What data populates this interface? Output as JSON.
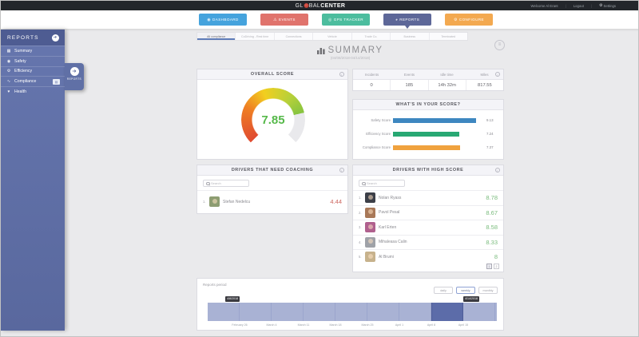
{
  "topbar": {
    "logo_prefix": "GL",
    "logo_mid": "BAL",
    "logo_suffix": "CENTER",
    "welcome": "Welcome Al Erant",
    "logout": "Logout",
    "settings": "Settings"
  },
  "nav": {
    "items": [
      {
        "label": "DASHBOARD",
        "icon": "◉",
        "color": "#45a3dd"
      },
      {
        "label": "EVENTS",
        "icon": "⚠",
        "color": "#e0736c"
      },
      {
        "label": "GPS TRACKER",
        "icon": "◎",
        "color": "#4cbd9e"
      },
      {
        "label": "REPORTS",
        "icon": "◕",
        "color": "#5d6798"
      },
      {
        "label": "CONFIGURE",
        "icon": "⚙",
        "color": "#f3a950"
      }
    ],
    "active": "REPORTS"
  },
  "sidebar": {
    "title": "REPORTS",
    "items": [
      {
        "label": "Summary",
        "icon": "▦"
      },
      {
        "label": "Safety",
        "icon": "◉"
      },
      {
        "label": "Efficiency",
        "icon": "⚙"
      },
      {
        "label": "Compliance",
        "icon": "∿"
      },
      {
        "label": "Health",
        "icon": "♥"
      }
    ],
    "tab_label": "REPORTS"
  },
  "subtabs": [
    {
      "label": "All compliance",
      "active": true
    },
    {
      "label": "CoDriving - Rest time",
      "active": false
    },
    {
      "label": "Connections",
      "active": false
    },
    {
      "label": "Vehicle",
      "active": false
    },
    {
      "label": "Trade Co.",
      "active": false
    },
    {
      "label": "Business",
      "active": false
    },
    {
      "label": "Terminated",
      "active": false
    }
  ],
  "summary": {
    "title": "SUMMARY",
    "date_range": "(04/08/2018-04/14/2018)"
  },
  "overall_score": {
    "title": "OVERALL SCORE",
    "value": "7.85",
    "max": 10
  },
  "stats": {
    "headers": [
      "Incidents",
      "Events",
      "Idle time",
      "Miles"
    ],
    "values": [
      "0",
      "185",
      "14h 32m",
      "817.55"
    ]
  },
  "chart_data": {
    "type": "bar",
    "title": "WHAT'S IN YOUR SCORE?",
    "categories": [
      "Safety Score",
      "Efficiency Score",
      "Compliance Score"
    ],
    "values": [
      9.13,
      7.24,
      7.37
    ],
    "xlim": [
      0,
      10
    ],
    "orientation": "horizontal",
    "colors": [
      "#3e87c0",
      "#28a873",
      "#f0a23e"
    ]
  },
  "score_breakdown": {
    "title": "WHAT'S IN YOUR SCORE?",
    "bars": [
      {
        "label": "Safety Score",
        "value": 9.13,
        "display": "9.13",
        "color": "#3e87c0"
      },
      {
        "label": "Efficiency Score",
        "value": 7.24,
        "display": "7.24",
        "color": "#28a873"
      },
      {
        "label": "Compliance Score",
        "value": 7.37,
        "display": "7.37",
        "color": "#f0a23e"
      }
    ]
  },
  "coaching": {
    "title": "DRIVERS THAT NEED COACHING",
    "search_placeholder": "Search",
    "rows": [
      {
        "rank": "1.",
        "name": "Stefan Nedelcu",
        "score": "4.44",
        "avatar_color": "#8d9d72"
      }
    ]
  },
  "high_score": {
    "title": "DRIVERS WITH HIGH SCORE",
    "search_placeholder": "Search",
    "rows": [
      {
        "rank": "1.",
        "name": "Nolan Ryass",
        "score": "8.78",
        "avatar_color": "#3c3f48"
      },
      {
        "rank": "2.",
        "name": "Pavol Pesal",
        "score": "8.67",
        "avatar_color": "#a87858"
      },
      {
        "rank": "3.",
        "name": "Karl Erten",
        "score": "8.58",
        "avatar_color": "#b0608e"
      },
      {
        "rank": "4.",
        "name": "Mihaleasa Calin",
        "score": "8.33",
        "avatar_color": "#9fa2a8"
      },
      {
        "rank": "5.",
        "name": "Al Brumi",
        "score": "8",
        "avatar_color": "#c7b28c"
      }
    ],
    "pagination": [
      "1",
      "2"
    ],
    "active_page": "1"
  },
  "reports_period": {
    "label": "Reports period",
    "buttons": [
      "daily",
      "weekly",
      "monthly"
    ],
    "active_button": "weekly",
    "selection_start": "4/8/2018",
    "selection_end": "4/14/2018",
    "axis_labels": [
      "February 26",
      "March 4",
      "March 11",
      "March 18",
      "March 25",
      "April 1",
      "April 8",
      "April 15"
    ]
  },
  "colors": {
    "gauge_green": "#56b94a",
    "score_red": "#cd655e",
    "score_green": "#7bbc7e",
    "timeline_band": "#a9b2d4",
    "timeline_selected": "#5c6ca9"
  }
}
